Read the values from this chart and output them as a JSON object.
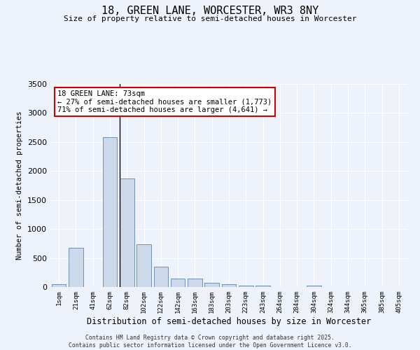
{
  "title": "18, GREEN LANE, WORCESTER, WR3 8NY",
  "subtitle": "Size of property relative to semi-detached houses in Worcester",
  "xlabel": "Distribution of semi-detached houses by size in Worcester",
  "ylabel": "Number of semi-detached properties",
  "categories": [
    "1sqm",
    "21sqm",
    "41sqm",
    "62sqm",
    "82sqm",
    "102sqm",
    "122sqm",
    "142sqm",
    "163sqm",
    "183sqm",
    "203sqm",
    "223sqm",
    "243sqm",
    "264sqm",
    "284sqm",
    "304sqm",
    "324sqm",
    "344sqm",
    "365sqm",
    "385sqm",
    "405sqm"
  ],
  "values": [
    50,
    670,
    0,
    2580,
    1870,
    740,
    350,
    150,
    150,
    75,
    45,
    25,
    20,
    5,
    0,
    25,
    0,
    0,
    0,
    0,
    0
  ],
  "bar_color": "#ccd9ea",
  "bar_edge_color": "#7090b8",
  "marker_label": "18 GREEN LANE: 73sqm",
  "annotation_line1": "← 27% of semi-detached houses are smaller (1,773)",
  "annotation_line2": "71% of semi-detached houses are larger (4,641) →",
  "annotation_box_color": "#ffffff",
  "annotation_box_edge": "#cc0000",
  "vline_color": "#000000",
  "vline_x": 3.57,
  "ylim": [
    0,
    3500
  ],
  "yticks": [
    0,
    500,
    1000,
    1500,
    2000,
    2500,
    3000,
    3500
  ],
  "bg_color": "#eef2fa",
  "grid_color": "#ffffff",
  "footer1": "Contains HM Land Registry data © Crown copyright and database right 2025.",
  "footer2": "Contains public sector information licensed under the Open Government Licence v3.0."
}
